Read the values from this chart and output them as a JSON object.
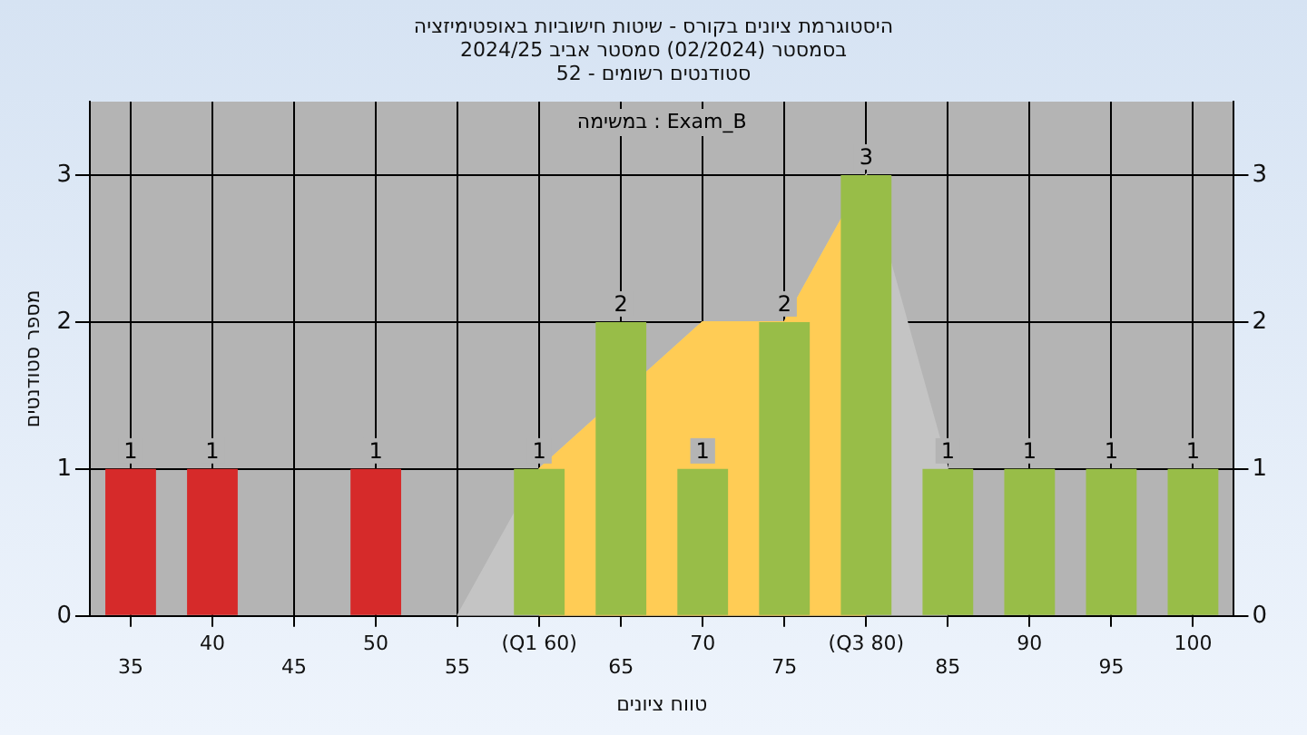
{
  "chart_data": {
    "type": "bar",
    "title": "היסטוגרמת ציונים בקורס - שיטות חישוביות באופטימיזציה",
    "subtitle": "בסמסטר  (02/2024)  סמסטר אביב 2024/25\nסטודנטים רשומים - 52",
    "xlabel": "טווח ציונים",
    "ylabel": "מספר סטודנטים",
    "annotations": [
      "במשימה : Exam_B"
    ],
    "categories": [
      "35",
      "40",
      "45",
      "50",
      "55",
      "(Q1 60)",
      "65",
      "70",
      "75",
      "(Q3 80)",
      "85",
      "90",
      "95",
      "100"
    ],
    "series": [
      {
        "type": "area",
        "color": "#c4c4c4",
        "values": [
          null,
          null,
          null,
          null,
          0,
          1,
          null,
          2,
          2,
          3,
          1,
          null,
          null,
          null
        ]
      },
      {
        "type": "area",
        "color": "#ffcc55",
        "values": [
          null,
          null,
          null,
          null,
          null,
          1,
          null,
          2,
          2,
          3,
          null,
          null,
          null,
          null
        ]
      },
      {
        "colors": [
          "#d62a2a",
          "#d62a2a",
          "#d62a2a",
          "#d62a2a",
          "#d62a2a",
          "#98bd48",
          "#98bd48",
          "#98bd48",
          "#98bd48",
          "#98bd48",
          "#98bd48",
          "#98bd48",
          "#98bd48",
          "#98bd48"
        ],
        "values": [
          1,
          1,
          0,
          1,
          0,
          1,
          2,
          1,
          2,
          3,
          1,
          1,
          1,
          1
        ],
        "value_labels": [
          "1",
          "1",
          null,
          "1",
          null,
          "1",
          "2",
          "1",
          "2",
          "3",
          "1",
          "1",
          "1",
          "1"
        ]
      }
    ],
    "ylim": [
      0,
      3.5
    ],
    "yticks": [
      0,
      1,
      2,
      3
    ],
    "y2lim": [
      0,
      3.5
    ],
    "y2ticks": [
      0,
      1,
      2,
      3
    ],
    "grid": true
  }
}
